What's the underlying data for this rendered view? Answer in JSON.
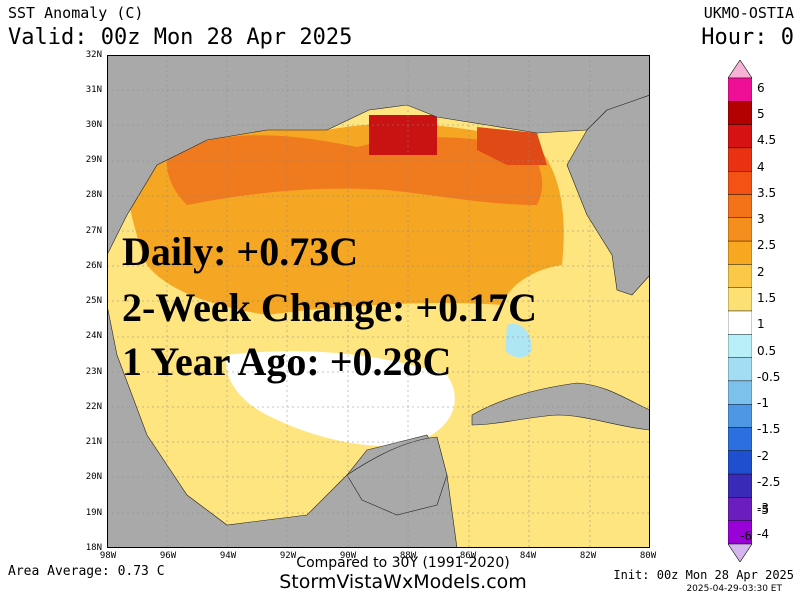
{
  "header": {
    "title": "SST Anomaly (C)",
    "valid": "Valid: 00z Mon 28 Apr 2025",
    "source": "UKMO-OSTIA",
    "hour": "Hour: 0"
  },
  "map": {
    "lat_labels": [
      "32N",
      "31N",
      "30N",
      "29N",
      "28N",
      "27N",
      "26N",
      "25N",
      "24N",
      "23N",
      "22N",
      "21N",
      "20N",
      "19N",
      "18N"
    ],
    "lon_labels": [
      "98W",
      "96W",
      "94W",
      "92W",
      "90W",
      "88W",
      "86W",
      "84W",
      "82W",
      "80W"
    ],
    "land_color": "#a9a9a9",
    "water_colors": [
      "#ffffff",
      "#ffe580",
      "#f5a623",
      "#f07a1e",
      "#e04a16",
      "#c91212",
      "#aee6f3"
    ]
  },
  "stats": {
    "daily": "Daily: +0.73C",
    "two_week": "2-Week Change: +0.17C",
    "year_ago": "1 Year Ago: +0.28C"
  },
  "colorbar": {
    "labels": [
      "6",
      "5",
      "4.5",
      "4",
      "3.5",
      "3",
      "2.5",
      "2",
      "1.5",
      "1",
      "0.5",
      "-0.5",
      "-1",
      "-1.5",
      "-2",
      "-2.5",
      "-3",
      "-4",
      "-5",
      "-6"
    ],
    "colors": [
      "#f7b3d6",
      "#ee0f96",
      "#b30000",
      "#d71212",
      "#e83212",
      "#f25214",
      "#f47218",
      "#f48e1c",
      "#f7a820",
      "#fbc848",
      "#fde074",
      "#ffffff",
      "#b8eff8",
      "#a2ddf4",
      "#7cc0ec",
      "#4d97e4",
      "#2c6fde",
      "#1f4fcf",
      "#3a2ab8",
      "#6c1dbe",
      "#9a00d8",
      "#d5b7ee"
    ]
  },
  "footer": {
    "area_average": "Area Average: 0.73 C",
    "compared": "Compared to 30Y (1991-2020)",
    "site": "StormVistaWxModels.com",
    "init": "Init: 00z Mon 28 Apr 2025",
    "timestamp": "2025-04-29-03:30 ET"
  }
}
